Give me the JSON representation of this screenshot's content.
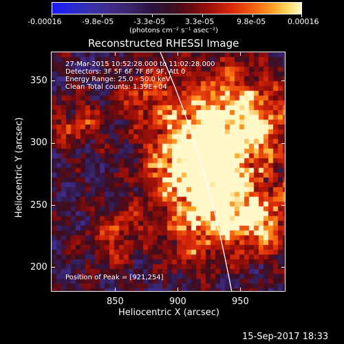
{
  "colorbar": {
    "ticks": [
      "-0.00016",
      "-9.8e-05",
      "-3.3e-05",
      "3.3e-05",
      "9.8e-05",
      "0.00016"
    ],
    "units": "(photons cm⁻² s⁻¹ asec⁻²)"
  },
  "title": "Reconstructed RHESSI Image",
  "info": {
    "time_range": "27-Mar-2015 10:52:28.000 to 11:02:28.000",
    "detectors": "Detectors: 3F 5F 6F 7F 8F 9F, Att 0",
    "energy": "Energy Range: 25.0 - 50.0 keV",
    "clean": "Clean    Total counts: 1.39E+04"
  },
  "peak": "Position of Peak = [921,254]",
  "axes": {
    "xlabel": "Heliocentric X (arcsec)",
    "ylabel": "Heliocentric Y (arcsec)",
    "xticks": [
      "850",
      "900",
      "950"
    ],
    "yticks": [
      "350",
      "300",
      "250",
      "200"
    ]
  },
  "footer_date": "15-Sep-2017 18:33"
}
